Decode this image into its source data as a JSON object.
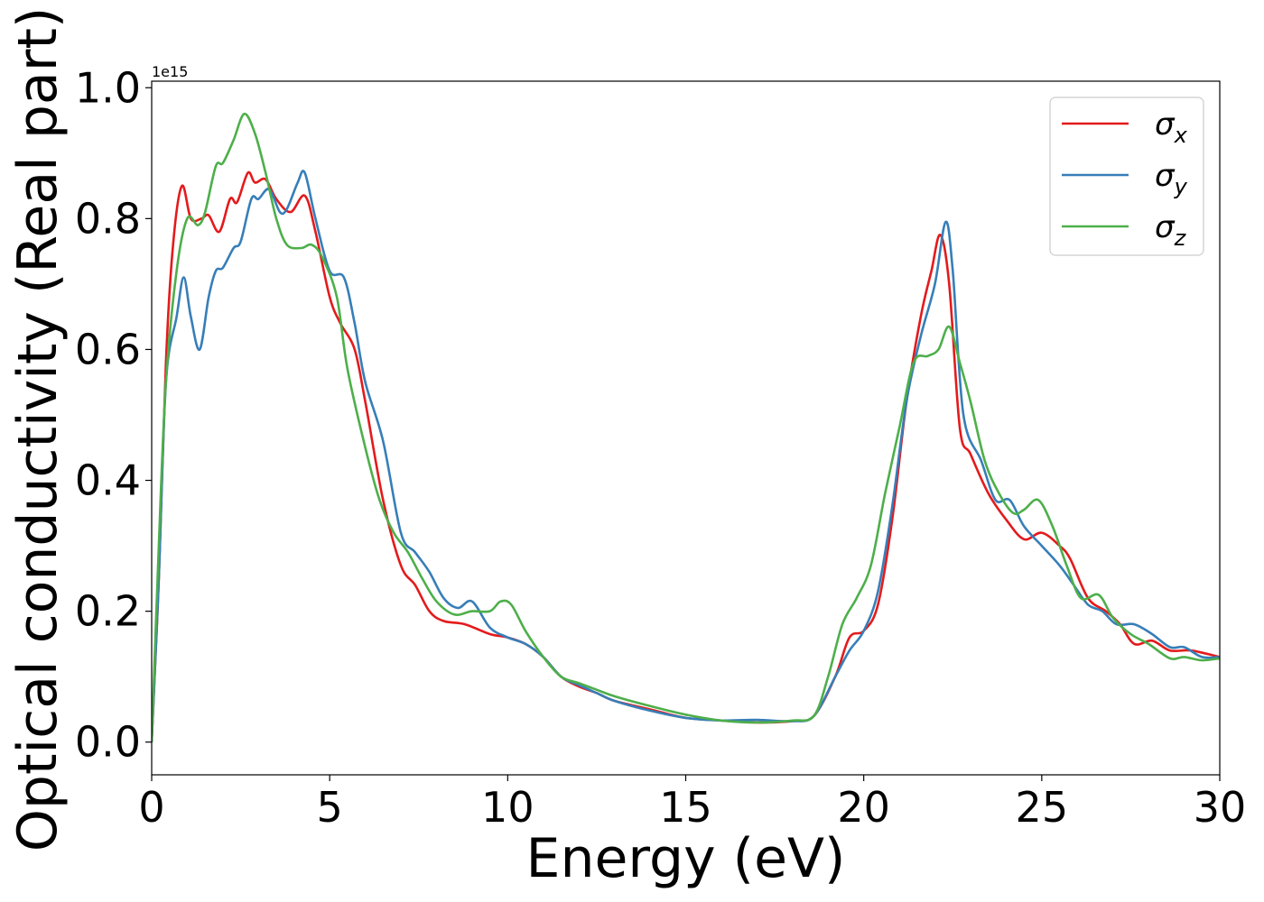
{
  "chart_data": {
    "type": "line",
    "xlabel": "Energy (eV)",
    "ylabel": "Optical conductivity (Real part)",
    "offset_text": "1e15",
    "xlim": [
      0,
      30
    ],
    "ylim": [
      -0.05,
      1.01
    ],
    "y_multiplier": 1000000000000000.0,
    "xticks": [
      0,
      5,
      10,
      15,
      20,
      25,
      30
    ],
    "xtick_labels": [
      "0",
      "5",
      "10",
      "15",
      "20",
      "25",
      "30"
    ],
    "yticks": [
      0.0,
      0.2,
      0.4,
      0.6,
      0.8,
      1.0
    ],
    "ytick_labels": [
      "0.0",
      "0.2",
      "0.4",
      "0.6",
      "0.8",
      "1.0"
    ],
    "grid": false,
    "legend_position": "top-right",
    "series": [
      {
        "name": "σx",
        "label_base": "σ",
        "label_sub": "x",
        "color": "#e41a1c",
        "points": [
          [
            0,
            0.0
          ],
          [
            0.2,
            0.25
          ],
          [
            0.4,
            0.58
          ],
          [
            0.6,
            0.76
          ],
          [
            0.85,
            0.85
          ],
          [
            1.1,
            0.8
          ],
          [
            1.4,
            0.8
          ],
          [
            1.6,
            0.805
          ],
          [
            1.9,
            0.78
          ],
          [
            2.2,
            0.83
          ],
          [
            2.4,
            0.825
          ],
          [
            2.7,
            0.87
          ],
          [
            2.9,
            0.855
          ],
          [
            3.2,
            0.86
          ],
          [
            3.5,
            0.83
          ],
          [
            3.9,
            0.81
          ],
          [
            4.3,
            0.835
          ],
          [
            4.6,
            0.78
          ],
          [
            5.0,
            0.68
          ],
          [
            5.3,
            0.64
          ],
          [
            5.7,
            0.6
          ],
          [
            6.0,
            0.52
          ],
          [
            6.5,
            0.37
          ],
          [
            7.0,
            0.27
          ],
          [
            7.4,
            0.24
          ],
          [
            7.8,
            0.2
          ],
          [
            8.2,
            0.185
          ],
          [
            8.8,
            0.18
          ],
          [
            9.5,
            0.165
          ],
          [
            10.0,
            0.16
          ],
          [
            10.5,
            0.15
          ],
          [
            11.0,
            0.13
          ],
          [
            11.5,
            0.1
          ],
          [
            12.0,
            0.085
          ],
          [
            12.5,
            0.075
          ],
          [
            13.0,
            0.063
          ],
          [
            14.0,
            0.05
          ],
          [
            15.0,
            0.037
          ],
          [
            16.0,
            0.033
          ],
          [
            17.0,
            0.03
          ],
          [
            18.0,
            0.032
          ],
          [
            18.6,
            0.04
          ],
          [
            19.2,
            0.1
          ],
          [
            19.6,
            0.16
          ],
          [
            20.0,
            0.17
          ],
          [
            20.4,
            0.21
          ],
          [
            20.8,
            0.34
          ],
          [
            21.2,
            0.52
          ],
          [
            21.6,
            0.65
          ],
          [
            21.9,
            0.72
          ],
          [
            22.15,
            0.775
          ],
          [
            22.4,
            0.7
          ],
          [
            22.7,
            0.48
          ],
          [
            23.0,
            0.44
          ],
          [
            23.5,
            0.38
          ],
          [
            24.0,
            0.34
          ],
          [
            24.5,
            0.31
          ],
          [
            25.0,
            0.32
          ],
          [
            25.5,
            0.3
          ],
          [
            25.8,
            0.28
          ],
          [
            26.3,
            0.22
          ],
          [
            26.8,
            0.2
          ],
          [
            27.2,
            0.18
          ],
          [
            27.6,
            0.15
          ],
          [
            28.1,
            0.155
          ],
          [
            28.6,
            0.14
          ],
          [
            29.2,
            0.14
          ],
          [
            30.0,
            0.13
          ]
        ]
      },
      {
        "name": "σy",
        "label_base": "σ",
        "label_sub": "y",
        "color": "#377eb8",
        "points": [
          [
            0,
            0.0
          ],
          [
            0.2,
            0.25
          ],
          [
            0.4,
            0.55
          ],
          [
            0.7,
            0.65
          ],
          [
            0.9,
            0.71
          ],
          [
            1.1,
            0.65
          ],
          [
            1.35,
            0.6
          ],
          [
            1.6,
            0.68
          ],
          [
            1.8,
            0.72
          ],
          [
            2.0,
            0.725
          ],
          [
            2.3,
            0.755
          ],
          [
            2.5,
            0.765
          ],
          [
            2.8,
            0.83
          ],
          [
            3.0,
            0.83
          ],
          [
            3.3,
            0.845
          ],
          [
            3.6,
            0.81
          ],
          [
            3.8,
            0.815
          ],
          [
            4.1,
            0.855
          ],
          [
            4.3,
            0.87
          ],
          [
            4.6,
            0.8
          ],
          [
            5.0,
            0.72
          ],
          [
            5.4,
            0.71
          ],
          [
            5.7,
            0.64
          ],
          [
            6.0,
            0.55
          ],
          [
            6.5,
            0.46
          ],
          [
            7.0,
            0.32
          ],
          [
            7.4,
            0.29
          ],
          [
            7.8,
            0.26
          ],
          [
            8.2,
            0.22
          ],
          [
            8.6,
            0.205
          ],
          [
            9.0,
            0.215
          ],
          [
            9.5,
            0.175
          ],
          [
            10.0,
            0.16
          ],
          [
            10.5,
            0.15
          ],
          [
            11.0,
            0.13
          ],
          [
            11.5,
            0.1
          ],
          [
            12.0,
            0.087
          ],
          [
            12.5,
            0.075
          ],
          [
            13.0,
            0.063
          ],
          [
            14.0,
            0.048
          ],
          [
            15.0,
            0.037
          ],
          [
            16.0,
            0.033
          ],
          [
            17.0,
            0.034
          ],
          [
            18.0,
            0.032
          ],
          [
            18.6,
            0.04
          ],
          [
            19.2,
            0.1
          ],
          [
            19.6,
            0.14
          ],
          [
            20.0,
            0.17
          ],
          [
            20.4,
            0.23
          ],
          [
            20.8,
            0.36
          ],
          [
            21.2,
            0.52
          ],
          [
            21.6,
            0.62
          ],
          [
            22.0,
            0.7
          ],
          [
            22.3,
            0.795
          ],
          [
            22.5,
            0.72
          ],
          [
            22.8,
            0.5
          ],
          [
            23.3,
            0.43
          ],
          [
            23.7,
            0.37
          ],
          [
            24.1,
            0.37
          ],
          [
            24.5,
            0.33
          ],
          [
            25.0,
            0.3
          ],
          [
            25.5,
            0.27
          ],
          [
            25.9,
            0.24
          ],
          [
            26.3,
            0.21
          ],
          [
            26.7,
            0.2
          ],
          [
            27.1,
            0.18
          ],
          [
            27.6,
            0.18
          ],
          [
            28.1,
            0.165
          ],
          [
            28.6,
            0.145
          ],
          [
            29.0,
            0.145
          ],
          [
            29.5,
            0.13
          ],
          [
            30.0,
            0.13
          ]
        ]
      },
      {
        "name": "σz",
        "label_base": "σ",
        "label_sub": "z",
        "color": "#4daf4a",
        "points": [
          [
            0,
            0.0
          ],
          [
            0.2,
            0.3
          ],
          [
            0.4,
            0.55
          ],
          [
            0.7,
            0.72
          ],
          [
            1.0,
            0.8
          ],
          [
            1.3,
            0.79
          ],
          [
            1.5,
            0.81
          ],
          [
            1.8,
            0.88
          ],
          [
            2.0,
            0.885
          ],
          [
            2.3,
            0.92
          ],
          [
            2.6,
            0.96
          ],
          [
            2.9,
            0.93
          ],
          [
            3.2,
            0.87
          ],
          [
            3.5,
            0.8
          ],
          [
            3.8,
            0.76
          ],
          [
            4.2,
            0.755
          ],
          [
            4.5,
            0.76
          ],
          [
            4.8,
            0.74
          ],
          [
            5.2,
            0.68
          ],
          [
            5.5,
            0.57
          ],
          [
            6.0,
            0.45
          ],
          [
            6.4,
            0.37
          ],
          [
            6.8,
            0.32
          ],
          [
            7.2,
            0.29
          ],
          [
            7.6,
            0.25
          ],
          [
            8.0,
            0.215
          ],
          [
            8.5,
            0.195
          ],
          [
            9.0,
            0.2
          ],
          [
            9.5,
            0.2
          ],
          [
            9.8,
            0.215
          ],
          [
            10.1,
            0.21
          ],
          [
            10.5,
            0.17
          ],
          [
            11.0,
            0.13
          ],
          [
            11.5,
            0.1
          ],
          [
            12.0,
            0.09
          ],
          [
            12.5,
            0.08
          ],
          [
            13.0,
            0.07
          ],
          [
            14.0,
            0.055
          ],
          [
            15.0,
            0.042
          ],
          [
            16.0,
            0.033
          ],
          [
            17.0,
            0.03
          ],
          [
            18.0,
            0.033
          ],
          [
            18.6,
            0.04
          ],
          [
            19.0,
            0.1
          ],
          [
            19.4,
            0.18
          ],
          [
            19.8,
            0.22
          ],
          [
            20.2,
            0.27
          ],
          [
            20.6,
            0.38
          ],
          [
            21.0,
            0.48
          ],
          [
            21.4,
            0.58
          ],
          [
            21.8,
            0.59
          ],
          [
            22.1,
            0.6
          ],
          [
            22.4,
            0.635
          ],
          [
            22.7,
            0.58
          ],
          [
            23.0,
            0.52
          ],
          [
            23.4,
            0.43
          ],
          [
            23.8,
            0.38
          ],
          [
            24.2,
            0.35
          ],
          [
            24.5,
            0.355
          ],
          [
            24.9,
            0.37
          ],
          [
            25.3,
            0.33
          ],
          [
            25.7,
            0.27
          ],
          [
            26.1,
            0.22
          ],
          [
            26.6,
            0.225
          ],
          [
            27.0,
            0.19
          ],
          [
            27.5,
            0.165
          ],
          [
            28.0,
            0.15
          ],
          [
            28.6,
            0.128
          ],
          [
            29.0,
            0.13
          ],
          [
            29.5,
            0.125
          ],
          [
            30.0,
            0.128
          ]
        ]
      }
    ]
  }
}
